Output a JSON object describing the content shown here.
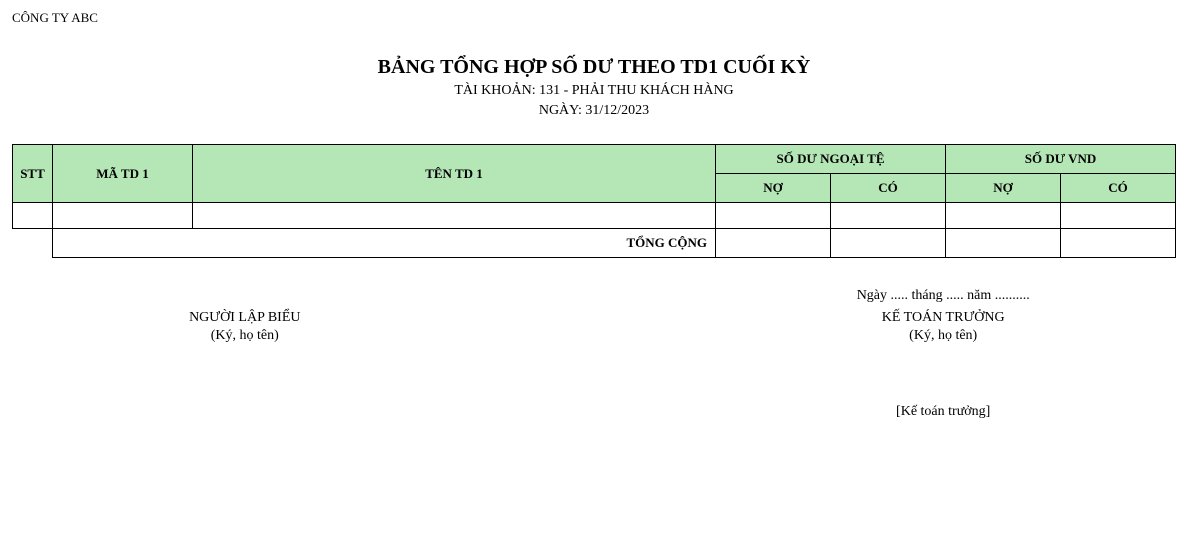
{
  "company": "CÔNG TY ABC",
  "header": {
    "title": "BẢNG TỔNG HỢP SỐ DƯ THEO TD1 CUỐI KỲ",
    "account_line": "TÀI KHOẢN: 131 - PHẢI THU KHÁCH HÀNG",
    "date_line": "NGÀY: 31/12/2023"
  },
  "table": {
    "columns": {
      "stt": "STT",
      "ma_td1": "MÃ TD 1",
      "ten_td1": "TÊN TD 1",
      "sodu_ngoaite": "SỐ DƯ NGOẠI TỆ",
      "sodu_vnd": "SỐ DƯ VND",
      "no": "NỢ",
      "co": "CÓ"
    },
    "total_label": "TỔNG CỘNG",
    "header_bg_color": "#b5e6b5",
    "border_color": "#000000",
    "rows": [
      {
        "stt": "",
        "ma": "",
        "ten": "",
        "nt_no": "",
        "nt_co": "",
        "vnd_no": "",
        "vnd_co": ""
      }
    ],
    "totals": {
      "nt_no": "",
      "nt_co": "",
      "vnd_no": "",
      "vnd_co": ""
    }
  },
  "signatures": {
    "date_line": "Ngày ..... tháng ..... năm ..........",
    "left": {
      "role": "NGƯỜI LẬP BIỂU",
      "note": "(Ký, họ tên)"
    },
    "right": {
      "role": "KẾ TOÁN TRƯỞNG",
      "note": "(Ký, họ tên)",
      "name": "[Kế toán trưởng]"
    }
  },
  "style": {
    "font_family": "Times New Roman",
    "title_fontsize_pt": 20,
    "subtitle_fontsize_pt": 14,
    "body_fontsize_pt": 13,
    "text_color": "#000000",
    "background_color": "#ffffff"
  }
}
